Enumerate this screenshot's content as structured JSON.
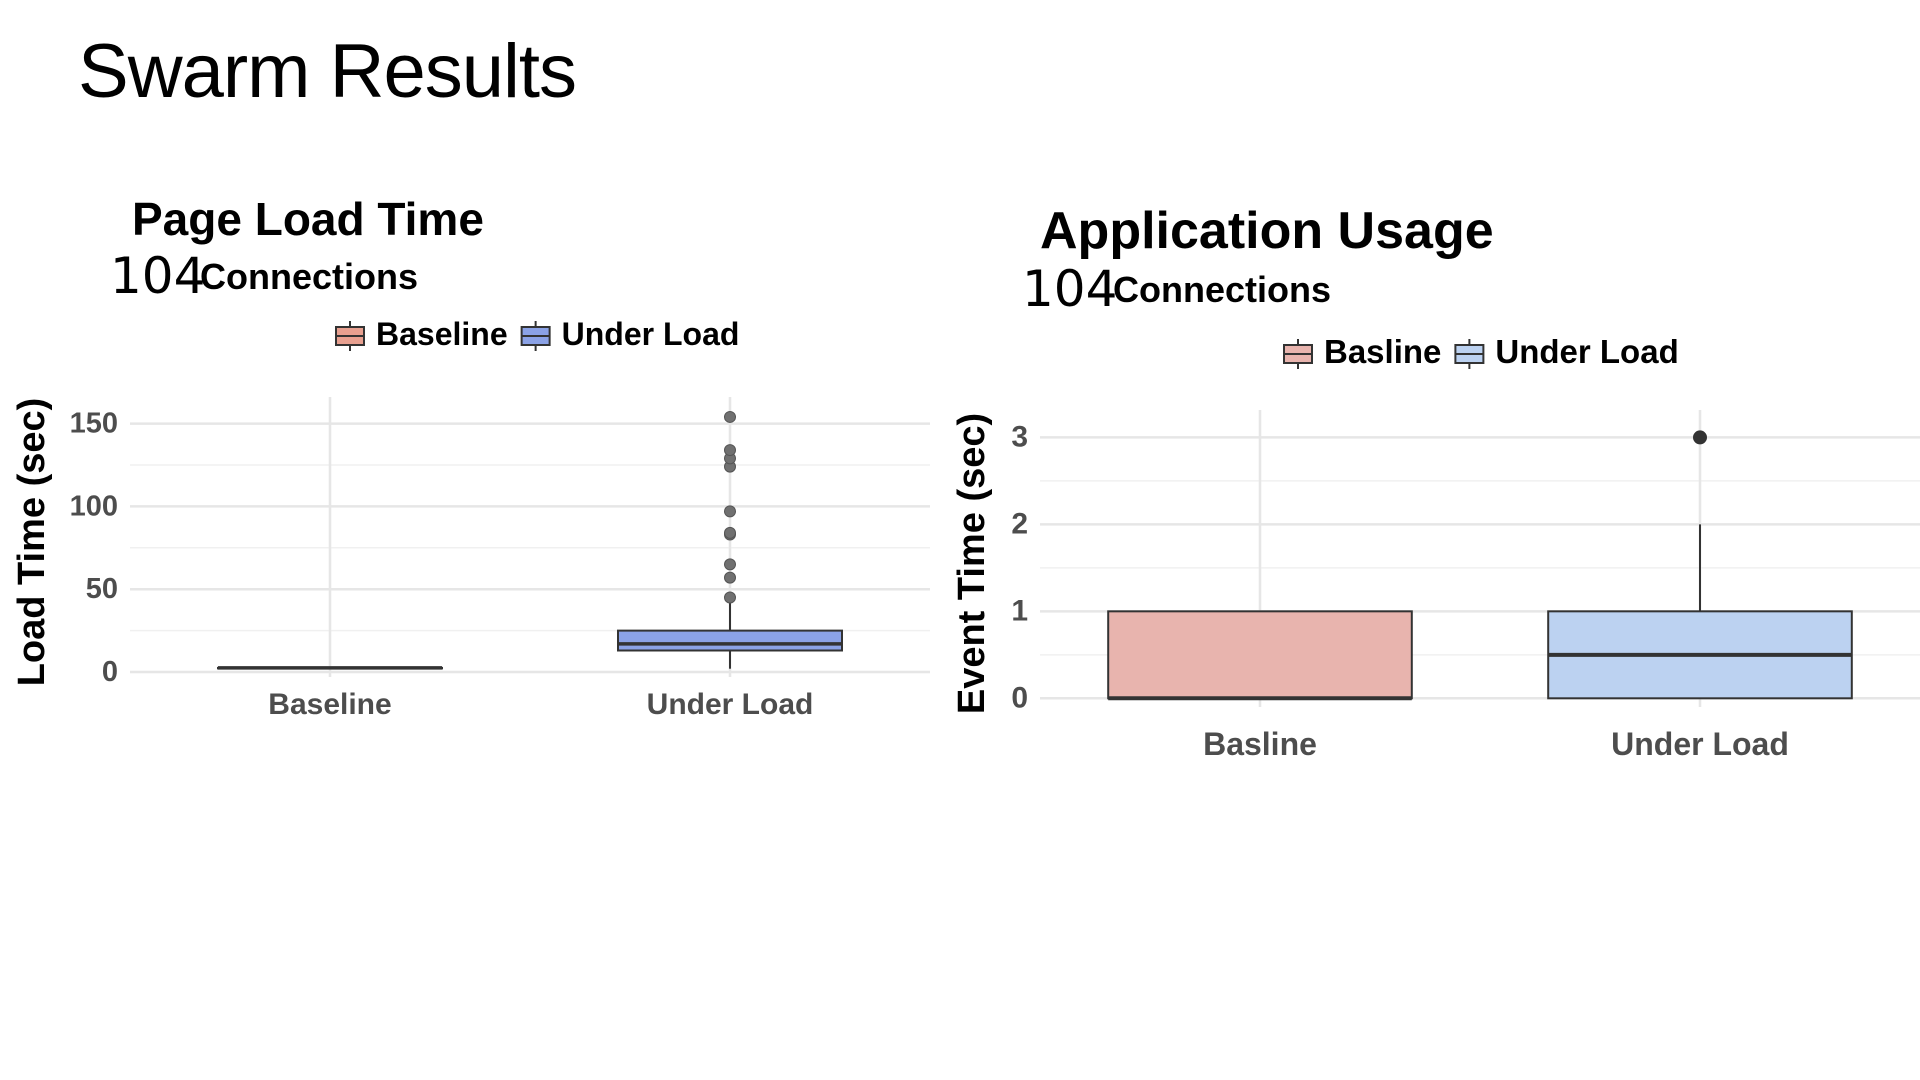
{
  "slide": {
    "title": "Swarm Results"
  },
  "chart_data": [
    {
      "type": "boxplot",
      "title": "Page Load Time",
      "subtitle_number": "104",
      "subtitle_text": "Connections",
      "xlabel": "",
      "ylabel": "Load Time (sec)",
      "ylim": [
        -3,
        160
      ],
      "yticks": [
        0,
        50,
        100,
        150
      ],
      "grid": true,
      "legend_position": "top",
      "legend": [
        "Baseline",
        "Under Load"
      ],
      "categories": [
        "Baseline",
        "Under Load"
      ],
      "colors": [
        "#e8a090",
        "#8ba2e6"
      ],
      "boxes": [
        {
          "name": "Baseline",
          "min": 2.5,
          "q1": 2.5,
          "median": 2.5,
          "q3": 2.5,
          "max": 2.5,
          "outliers": []
        },
        {
          "name": "Under Load",
          "min": 2,
          "q1": 13,
          "median": 17,
          "q3": 25,
          "max": 45,
          "outliers": [
            45,
            57,
            65,
            83,
            84,
            97,
            124,
            129,
            134,
            154
          ]
        }
      ]
    },
    {
      "type": "boxplot",
      "title": "Application Usage",
      "subtitle_number": "104",
      "subtitle_text": "Connections",
      "xlabel": "",
      "ylabel": "Event Time (sec)",
      "ylim": [
        -0.1,
        3.2
      ],
      "yticks": [
        0,
        1,
        2,
        3
      ],
      "grid": true,
      "legend_position": "top",
      "legend": [
        "Basline",
        "Under Load"
      ],
      "categories": [
        "Basline",
        "Under Load"
      ],
      "colors": [
        "#e8b4ae",
        "#bcd2f1"
      ],
      "boxes": [
        {
          "name": "Basline",
          "min": 0,
          "q1": 0,
          "median": 0,
          "q3": 1,
          "max": 1,
          "outliers": []
        },
        {
          "name": "Under Load",
          "min": 0,
          "q1": 0,
          "median": 0.5,
          "q3": 1,
          "max": 2,
          "outliers": [
            3
          ]
        }
      ]
    }
  ]
}
